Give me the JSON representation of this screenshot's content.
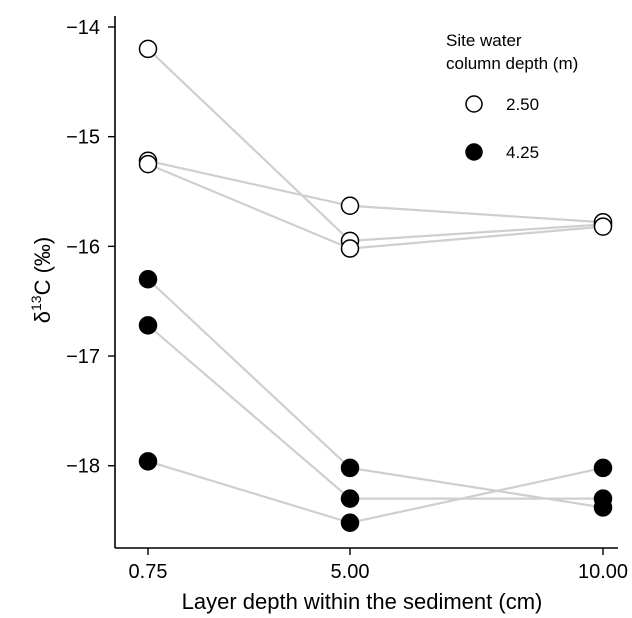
{
  "chart_data": {
    "type": "scatter",
    "xlabel": "Layer depth within the sediment (cm)",
    "ylabel_prefix": "δ",
    "ylabel_sup": "13",
    "ylabel_suffix": "C (‰)",
    "categories": [
      "0.75",
      "5.00",
      "10.00"
    ],
    "y_ticks": [
      -14,
      -15,
      -16,
      -17,
      -18
    ],
    "y_tick_labels": [
      "−14",
      "−15",
      "−16",
      "−17",
      "−18"
    ],
    "ylim": [
      -18.75,
      -13.9
    ],
    "grid": false,
    "legend": {
      "title_line1": "Site water",
      "title_line2": "column depth (m)",
      "placement": "top-right",
      "entries": [
        {
          "label": "2.50",
          "fill": "#ffffff"
        },
        {
          "label": "4.25",
          "fill": "#000000"
        }
      ]
    },
    "series": [
      {
        "group": "2.50",
        "values": [
          -14.2,
          -15.95,
          -15.8
        ]
      },
      {
        "group": "2.50",
        "values": [
          -15.22,
          -15.63,
          -15.78
        ]
      },
      {
        "group": "2.50",
        "values": [
          -15.25,
          -16.02,
          -15.82
        ]
      },
      {
        "group": "4.25",
        "values": [
          -16.3,
          -18.02,
          -18.38
        ]
      },
      {
        "group": "4.25",
        "values": [
          -16.72,
          -18.3,
          -18.3
        ]
      },
      {
        "group": "4.25",
        "values": [
          -17.96,
          -18.52,
          -18.02
        ]
      }
    ],
    "colors": {
      "line": "#cfcfcf",
      "marker_edge": "#000000"
    }
  }
}
